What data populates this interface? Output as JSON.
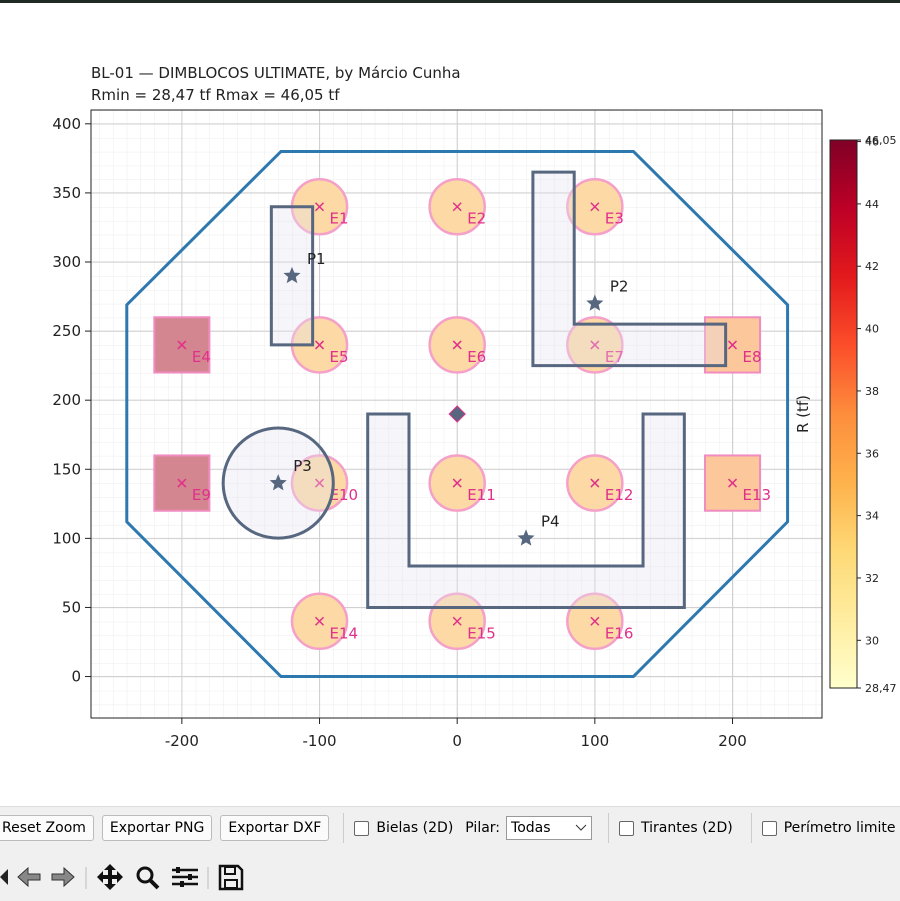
{
  "plot": {
    "title": "BL-01 — DIMBLOCOS ULTIMATE, by Márcio Cunha",
    "subtitle": "Rmin = 28,47 tf   Rmax = 46,05 tf",
    "xlim": [
      -266,
      265
    ],
    "ylim": [
      -30,
      410
    ],
    "xticks": [
      -200,
      -100,
      0,
      100,
      200
    ],
    "yticks": [
      0,
      50,
      100,
      150,
      200,
      250,
      300,
      350,
      400
    ],
    "block_outline": [
      [
        -128,
        380
      ],
      [
        128,
        380
      ],
      [
        240,
        269
      ],
      [
        240,
        112
      ],
      [
        128,
        0
      ],
      [
        -128,
        0
      ],
      [
        -240,
        112
      ],
      [
        -240,
        269
      ]
    ],
    "piles": [
      {
        "label": "E1",
        "x": -100,
        "y": 340,
        "shape": "circle",
        "color": "#fcd9a5"
      },
      {
        "label": "E2",
        "x": 0,
        "y": 340,
        "shape": "circle",
        "color": "#fcd9a5"
      },
      {
        "label": "E3",
        "x": 100,
        "y": 340,
        "shape": "circle",
        "color": "#fcd9a5"
      },
      {
        "label": "E4",
        "x": -200,
        "y": 240,
        "shape": "square",
        "color": "#d3868f"
      },
      {
        "label": "E5",
        "x": -100,
        "y": 240,
        "shape": "circle",
        "color": "#fcd9a5"
      },
      {
        "label": "E6",
        "x": 0,
        "y": 240,
        "shape": "circle",
        "color": "#fcd9a5"
      },
      {
        "label": "E7",
        "x": 100,
        "y": 240,
        "shape": "circle",
        "color": "#fcd9a5"
      },
      {
        "label": "E8",
        "x": 200,
        "y": 240,
        "shape": "square",
        "color": "#fcc79a"
      },
      {
        "label": "E9",
        "x": -200,
        "y": 140,
        "shape": "square",
        "color": "#d3868f"
      },
      {
        "label": "E10",
        "x": -100,
        "y": 140,
        "shape": "circle",
        "color": "#fcd9a5"
      },
      {
        "label": "E11",
        "x": 0,
        "y": 140,
        "shape": "circle",
        "color": "#fcd9a5"
      },
      {
        "label": "E12",
        "x": 100,
        "y": 140,
        "shape": "circle",
        "color": "#fcd9a5"
      },
      {
        "label": "E13",
        "x": 200,
        "y": 140,
        "shape": "square",
        "color": "#fcc79a"
      },
      {
        "label": "E14",
        "x": -100,
        "y": 40,
        "shape": "circle",
        "color": "#fcd9a5"
      },
      {
        "label": "E15",
        "x": 0,
        "y": 40,
        "shape": "circle",
        "color": "#fcd9a5"
      },
      {
        "label": "E16",
        "x": 100,
        "y": 40,
        "shape": "circle",
        "color": "#fcd9a5"
      }
    ],
    "pillars": [
      {
        "label": "P1",
        "x": -120,
        "y": 290,
        "outline": [
          [
            -135,
            240
          ],
          [
            -105,
            240
          ],
          [
            -105,
            340
          ],
          [
            -135,
            340
          ]
        ]
      },
      {
        "label": "P2",
        "x": 100,
        "y": 270,
        "outline": [
          [
            55,
            225
          ],
          [
            195,
            225
          ],
          [
            195,
            255
          ],
          [
            85,
            255
          ],
          [
            85,
            365
          ],
          [
            55,
            365
          ]
        ]
      },
      {
        "label": "P3",
        "x": -130,
        "y": 140,
        "radius": 40
      },
      {
        "label": "P4",
        "x": 50,
        "y": 100,
        "outline": [
          [
            -65,
            50
          ],
          [
            165,
            50
          ],
          [
            165,
            190
          ],
          [
            135,
            190
          ],
          [
            135,
            80
          ],
          [
            -35,
            80
          ],
          [
            -35,
            190
          ],
          [
            -65,
            190
          ]
        ]
      }
    ],
    "centroid": [
      0,
      190
    ]
  },
  "colorbar": {
    "label": "R (tf)",
    "range": [
      28.47,
      46.05
    ],
    "colors": [
      "#ffffcc",
      "#ffeda0",
      "#fed976",
      "#feb24c",
      "#fd8d3c",
      "#fc4e2a",
      "#e31a1c",
      "#bd0026",
      "#800026"
    ],
    "ticks": [
      {
        "value": 28.47,
        "label": "28,47"
      },
      30,
      32,
      34,
      36,
      38,
      40,
      42,
      44,
      46,
      {
        "value": 46.05,
        "label": "46,05"
      }
    ]
  },
  "toolbar": {
    "buttons": [
      "Reset Zoom",
      "Exportar PNG",
      "Exportar DXF"
    ],
    "bielas": "Bielas (2D)",
    "pilar_label": "Pilar:",
    "pilar_value": "Todas",
    "tirantes": "Tirantes (2D)",
    "perimetro": "Perímetro limite"
  }
}
